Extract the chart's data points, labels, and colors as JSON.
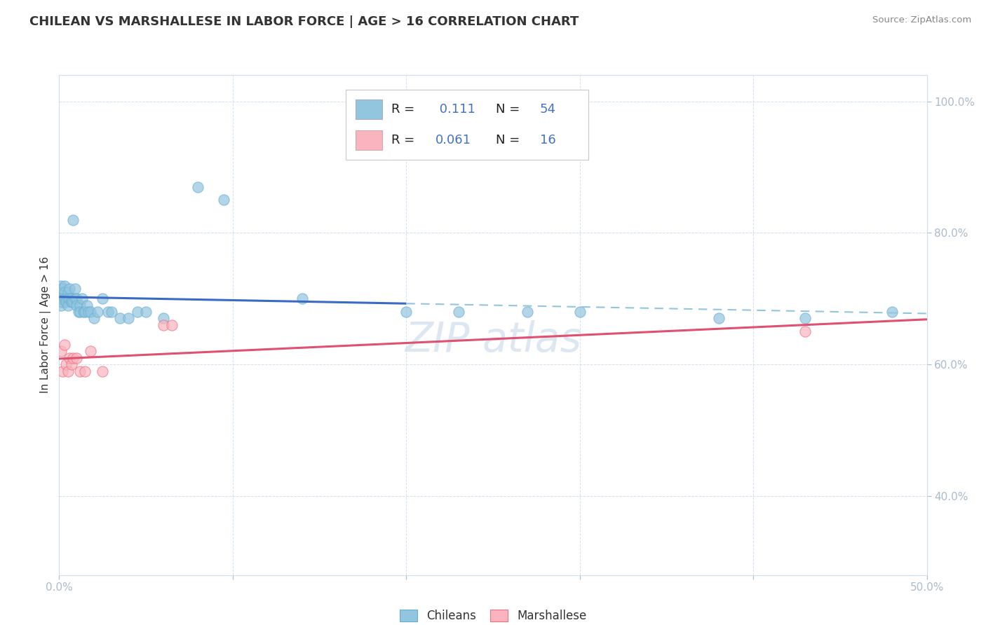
{
  "title": "CHILEAN VS MARSHALLESE IN LABOR FORCE | AGE > 16 CORRELATION CHART",
  "source_text": "Source: ZipAtlas.com",
  "ylabel": "In Labor Force | Age > 16",
  "xlim": [
    0.0,
    0.5
  ],
  "ylim": [
    0.28,
    1.04
  ],
  "ytick_labels": [
    "40.0%",
    "60.0%",
    "80.0%",
    "100.0%"
  ],
  "ytick_values": [
    0.4,
    0.6,
    0.8,
    1.0
  ],
  "xtick_labels": [
    "0.0%",
    "",
    "",
    "",
    "",
    "50.0%"
  ],
  "xtick_values": [
    0.0,
    0.1,
    0.2,
    0.3,
    0.4,
    0.5
  ],
  "chilean_color": "#92C5DE",
  "chilean_edge_color": "#6AAED6",
  "marshallese_color": "#F9B4BF",
  "marshallese_edge_color": "#F07080",
  "trend_chilean_color": "#3A6BC4",
  "trend_marshallese_color": "#E05070",
  "trend_chilean_dash_color": "#92C5DE",
  "watermark_color": "#C5D8E8",
  "chilean_x": [
    0.001,
    0.001,
    0.001,
    0.001,
    0.002,
    0.002,
    0.002,
    0.003,
    0.003,
    0.003,
    0.004,
    0.004,
    0.005,
    0.005,
    0.005,
    0.006,
    0.006,
    0.007,
    0.007,
    0.008,
    0.008,
    0.009,
    0.009,
    0.01,
    0.01,
    0.011,
    0.012,
    0.012,
    0.013,
    0.014,
    0.015,
    0.016,
    0.017,
    0.018,
    0.02,
    0.022,
    0.025,
    0.028,
    0.03,
    0.035,
    0.04,
    0.045,
    0.05,
    0.06,
    0.08,
    0.095,
    0.14,
    0.2,
    0.23,
    0.27,
    0.3,
    0.38,
    0.43,
    0.48
  ],
  "chilean_y": [
    0.72,
    0.71,
    0.7,
    0.69,
    0.715,
    0.7,
    0.695,
    0.72,
    0.71,
    0.7,
    0.7,
    0.695,
    0.71,
    0.7,
    0.69,
    0.715,
    0.7,
    0.7,
    0.695,
    0.82,
    0.695,
    0.7,
    0.715,
    0.7,
    0.69,
    0.68,
    0.69,
    0.68,
    0.7,
    0.68,
    0.68,
    0.69,
    0.68,
    0.68,
    0.67,
    0.68,
    0.7,
    0.68,
    0.68,
    0.67,
    0.67,
    0.68,
    0.68,
    0.67,
    0.87,
    0.85,
    0.7,
    0.68,
    0.68,
    0.68,
    0.68,
    0.67,
    0.67,
    0.68
  ],
  "marshallese_x": [
    0.001,
    0.002,
    0.003,
    0.004,
    0.005,
    0.006,
    0.007,
    0.008,
    0.01,
    0.012,
    0.015,
    0.018,
    0.025,
    0.06,
    0.065,
    0.43
  ],
  "marshallese_y": [
    0.62,
    0.59,
    0.63,
    0.6,
    0.59,
    0.61,
    0.6,
    0.61,
    0.61,
    0.59,
    0.59,
    0.62,
    0.59,
    0.66,
    0.66,
    0.65
  ],
  "trend_solid_end": 0.2,
  "trend_full_end": 0.5
}
